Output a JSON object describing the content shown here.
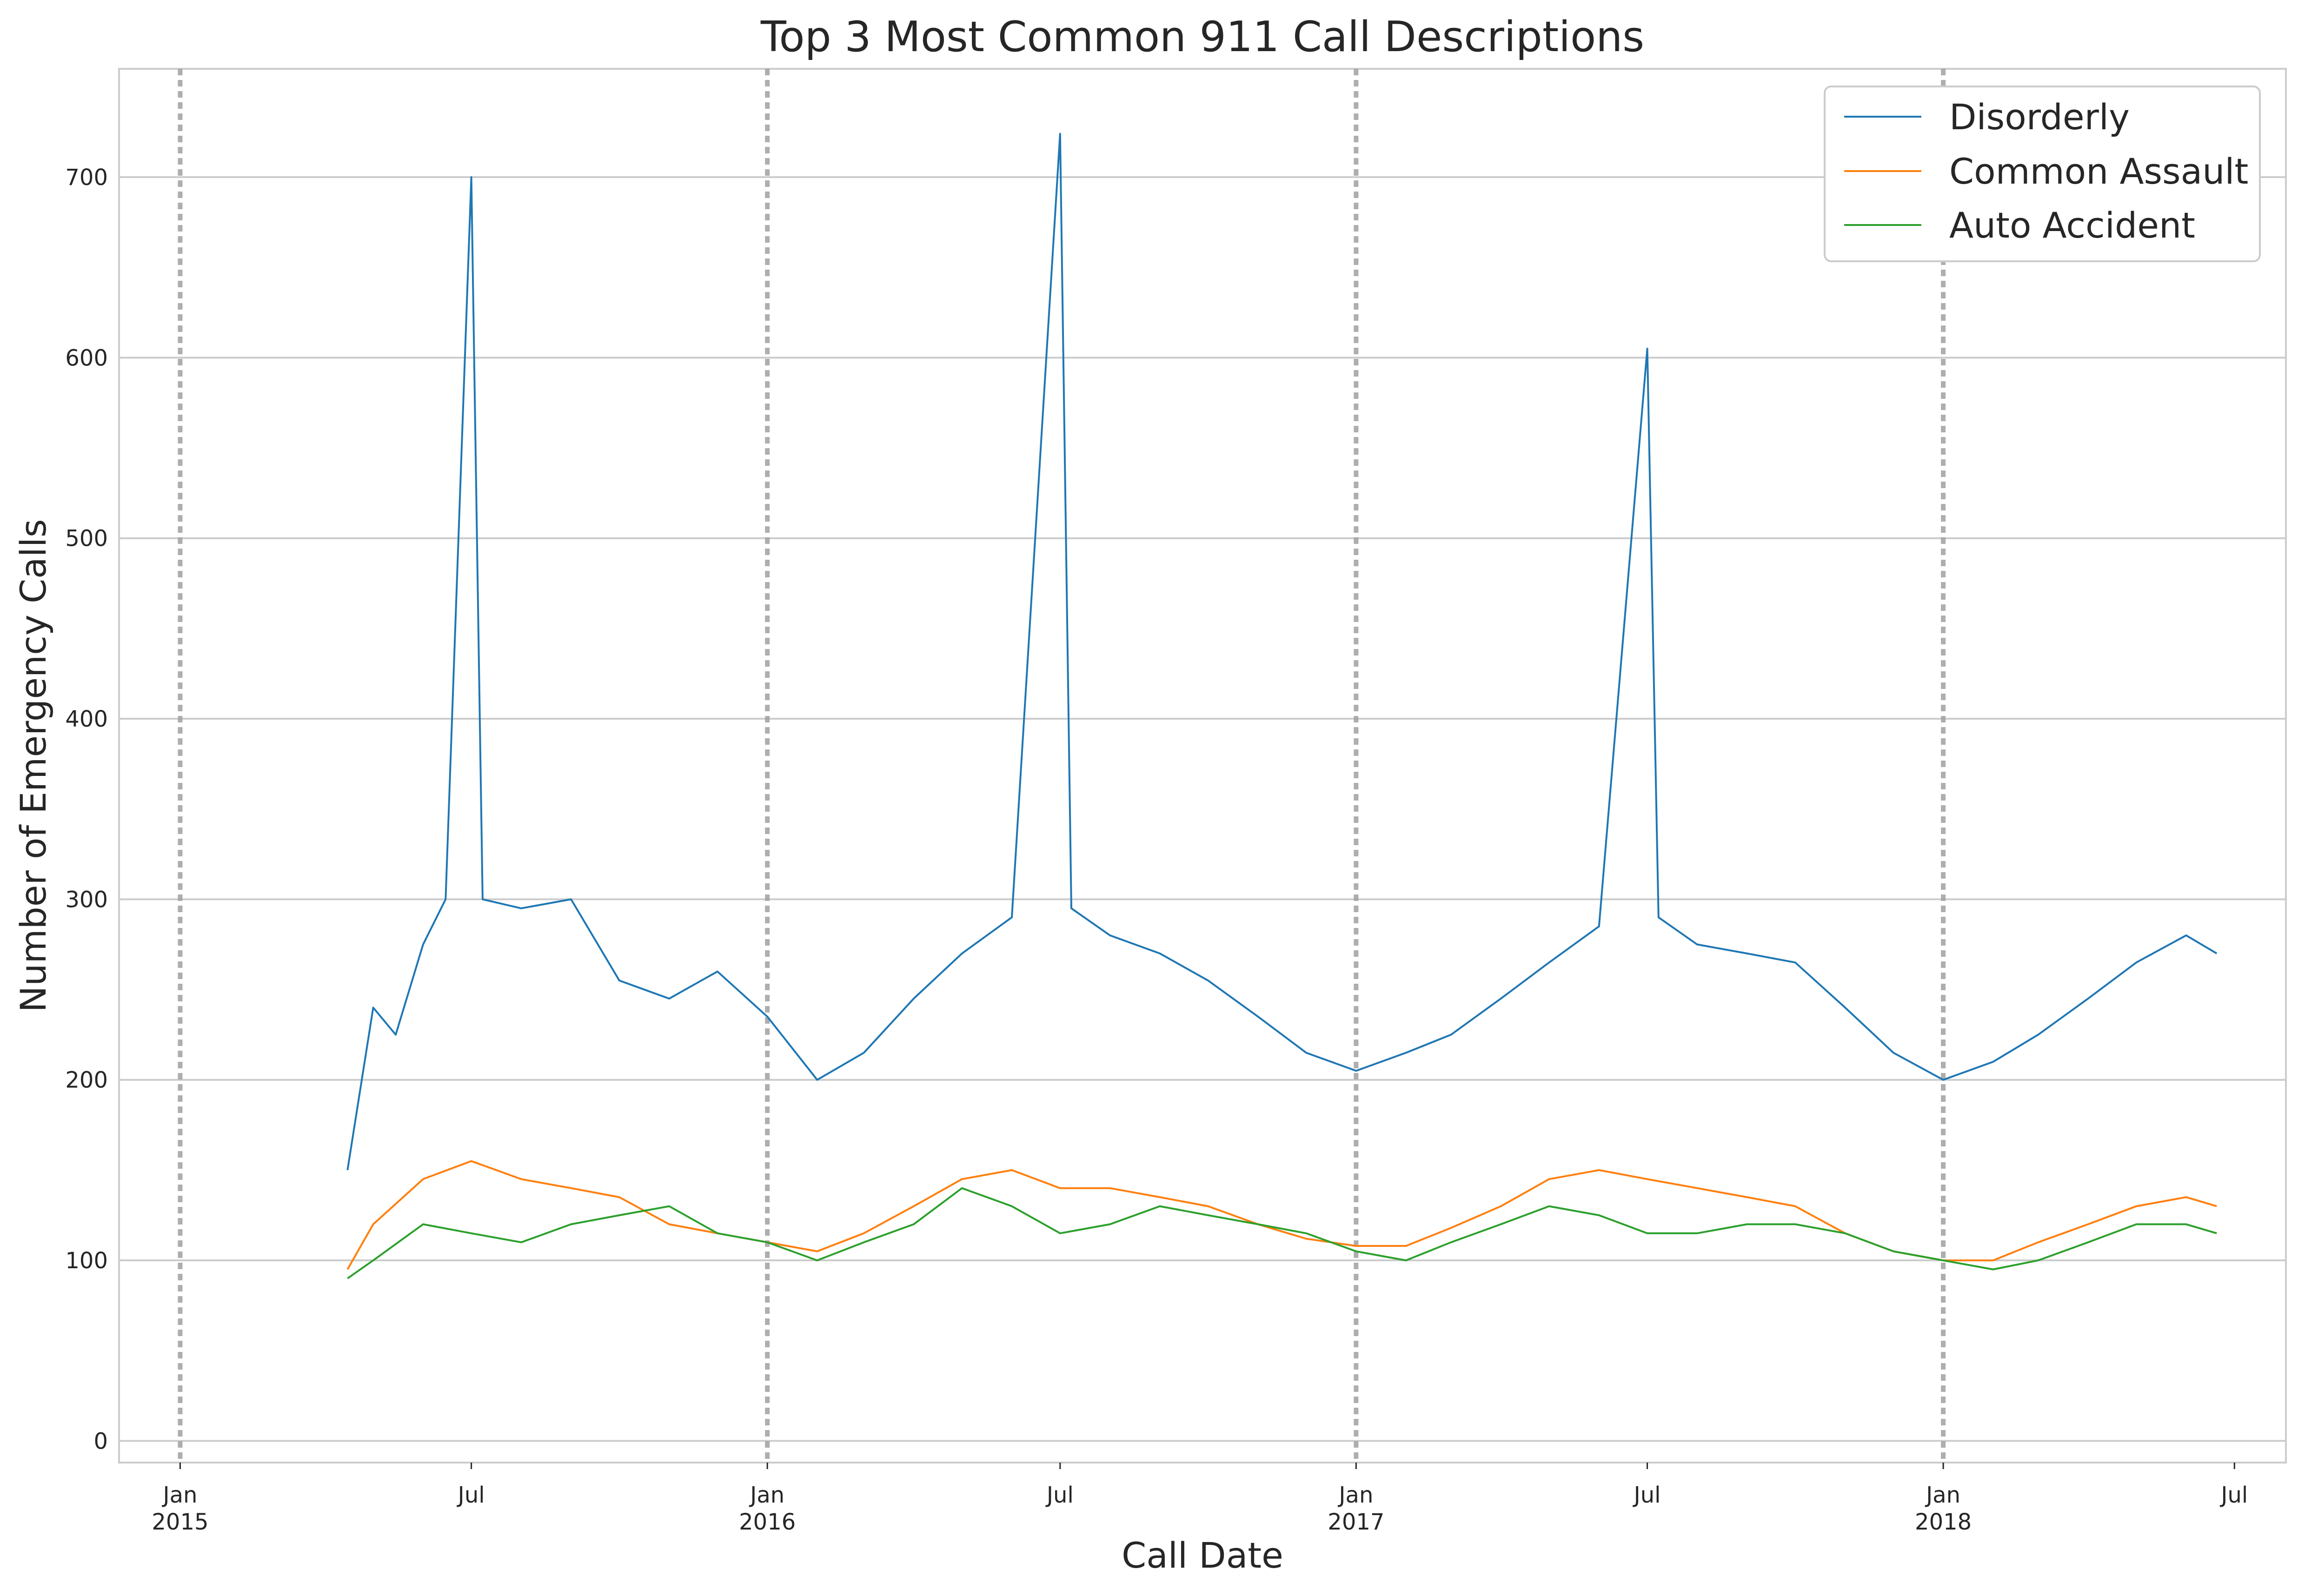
{
  "chart_data": {
    "type": "line",
    "title": "Top 3 Most Common 911 Call Descriptions",
    "xlabel": "Call Date",
    "ylabel": "Number of Emergency Calls",
    "x_range": [
      "2014-11-24",
      "2018-08-02"
    ],
    "ylim": [
      -12,
      760
    ],
    "y_ticks": [
      0,
      100,
      200,
      300,
      400,
      500,
      600,
      700
    ],
    "x_ticks": [
      {
        "date": "2015-01-01",
        "label": [
          "Jan",
          "2015"
        ]
      },
      {
        "date": "2015-07-01",
        "label": [
          "Jul",
          ""
        ]
      },
      {
        "date": "2016-01-01",
        "label": [
          "Jan",
          "2016"
        ]
      },
      {
        "date": "2016-07-01",
        "label": [
          "Jul",
          ""
        ]
      },
      {
        "date": "2017-01-01",
        "label": [
          "Jan",
          "2017"
        ]
      },
      {
        "date": "2017-07-01",
        "label": [
          "Jul",
          ""
        ]
      },
      {
        "date": "2018-01-01",
        "label": [
          "Jan",
          "2018"
        ]
      },
      {
        "date": "2018-07-01",
        "label": [
          "Jul",
          ""
        ]
      }
    ],
    "vlines": [
      "2015-01-01",
      "2016-01-01",
      "2017-01-01",
      "2018-01-01"
    ],
    "grid": "horizontal",
    "legend_position": "top-right",
    "series": [
      {
        "name": "Disorderly",
        "color": "#1f77b4",
        "points": [
          [
            "2015-04-15",
            150
          ],
          [
            "2015-05-01",
            240
          ],
          [
            "2015-05-15",
            225
          ],
          [
            "2015-06-01",
            275
          ],
          [
            "2015-06-15",
            300
          ],
          [
            "2015-07-01",
            700
          ],
          [
            "2015-07-08",
            300
          ],
          [
            "2015-08-01",
            295
          ],
          [
            "2015-09-01",
            300
          ],
          [
            "2015-10-01",
            255
          ],
          [
            "2015-11-01",
            245
          ],
          [
            "2015-12-01",
            260
          ],
          [
            "2016-01-01",
            235
          ],
          [
            "2016-02-01",
            200
          ],
          [
            "2016-03-01",
            215
          ],
          [
            "2016-04-01",
            245
          ],
          [
            "2016-05-01",
            270
          ],
          [
            "2016-06-01",
            290
          ],
          [
            "2016-07-01",
            724
          ],
          [
            "2016-07-08",
            295
          ],
          [
            "2016-08-01",
            280
          ],
          [
            "2016-09-01",
            270
          ],
          [
            "2016-10-01",
            255
          ],
          [
            "2016-11-01",
            235
          ],
          [
            "2016-12-01",
            215
          ],
          [
            "2017-01-01",
            205
          ],
          [
            "2017-02-01",
            215
          ],
          [
            "2017-03-01",
            225
          ],
          [
            "2017-04-01",
            245
          ],
          [
            "2017-05-01",
            265
          ],
          [
            "2017-06-01",
            285
          ],
          [
            "2017-07-01",
            605
          ],
          [
            "2017-07-08",
            290
          ],
          [
            "2017-08-01",
            275
          ],
          [
            "2017-09-01",
            270
          ],
          [
            "2017-10-01",
            265
          ],
          [
            "2017-11-01",
            240
          ],
          [
            "2017-12-01",
            215
          ],
          [
            "2018-01-01",
            200
          ],
          [
            "2018-02-01",
            210
          ],
          [
            "2018-03-01",
            225
          ],
          [
            "2018-04-01",
            245
          ],
          [
            "2018-05-01",
            265
          ],
          [
            "2018-06-01",
            280
          ],
          [
            "2018-06-20",
            270
          ]
        ]
      },
      {
        "name": "Common Assault",
        "color": "#ff7f0e",
        "points": [
          [
            "2015-04-15",
            95
          ],
          [
            "2015-05-01",
            120
          ],
          [
            "2015-06-01",
            145
          ],
          [
            "2015-07-01",
            155
          ],
          [
            "2015-08-01",
            145
          ],
          [
            "2015-09-01",
            140
          ],
          [
            "2015-10-01",
            135
          ],
          [
            "2015-11-01",
            120
          ],
          [
            "2015-12-01",
            115
          ],
          [
            "2016-01-01",
            110
          ],
          [
            "2016-02-01",
            105
          ],
          [
            "2016-03-01",
            115
          ],
          [
            "2016-04-01",
            130
          ],
          [
            "2016-05-01",
            145
          ],
          [
            "2016-06-01",
            150
          ],
          [
            "2016-07-01",
            140
          ],
          [
            "2016-08-01",
            140
          ],
          [
            "2016-09-01",
            135
          ],
          [
            "2016-10-01",
            130
          ],
          [
            "2016-11-01",
            120
          ],
          [
            "2016-12-01",
            112
          ],
          [
            "2017-01-01",
            108
          ],
          [
            "2017-02-01",
            108
          ],
          [
            "2017-03-01",
            118
          ],
          [
            "2017-04-01",
            130
          ],
          [
            "2017-05-01",
            145
          ],
          [
            "2017-06-01",
            150
          ],
          [
            "2017-07-01",
            145
          ],
          [
            "2017-08-01",
            140
          ],
          [
            "2017-09-01",
            135
          ],
          [
            "2017-10-01",
            130
          ],
          [
            "2017-11-01",
            115
          ],
          [
            "2017-12-01",
            105
          ],
          [
            "2018-01-01",
            100
          ],
          [
            "2018-02-01",
            100
          ],
          [
            "2018-03-01",
            110
          ],
          [
            "2018-04-01",
            120
          ],
          [
            "2018-05-01",
            130
          ],
          [
            "2018-06-01",
            135
          ],
          [
            "2018-06-20",
            130
          ]
        ]
      },
      {
        "name": "Auto Accident",
        "color": "#2ca02c",
        "points": [
          [
            "2015-04-15",
            90
          ],
          [
            "2015-05-01",
            100
          ],
          [
            "2015-06-01",
            120
          ],
          [
            "2015-07-01",
            115
          ],
          [
            "2015-08-01",
            110
          ],
          [
            "2015-09-01",
            120
          ],
          [
            "2015-10-01",
            125
          ],
          [
            "2015-11-01",
            130
          ],
          [
            "2015-12-01",
            115
          ],
          [
            "2016-01-01",
            110
          ],
          [
            "2016-02-01",
            100
          ],
          [
            "2016-03-01",
            110
          ],
          [
            "2016-04-01",
            120
          ],
          [
            "2016-05-01",
            140
          ],
          [
            "2016-06-01",
            130
          ],
          [
            "2016-07-01",
            115
          ],
          [
            "2016-08-01",
            120
          ],
          [
            "2016-09-01",
            130
          ],
          [
            "2016-10-01",
            125
          ],
          [
            "2016-11-01",
            120
          ],
          [
            "2016-12-01",
            115
          ],
          [
            "2017-01-01",
            105
          ],
          [
            "2017-02-01",
            100
          ],
          [
            "2017-03-01",
            110
          ],
          [
            "2017-04-01",
            120
          ],
          [
            "2017-05-01",
            130
          ],
          [
            "2017-06-01",
            125
          ],
          [
            "2017-07-01",
            115
          ],
          [
            "2017-08-01",
            115
          ],
          [
            "2017-09-01",
            120
          ],
          [
            "2017-10-01",
            120
          ],
          [
            "2017-11-01",
            115
          ],
          [
            "2017-12-01",
            105
          ],
          [
            "2018-01-01",
            100
          ],
          [
            "2018-02-01",
            95
          ],
          [
            "2018-03-01",
            100
          ],
          [
            "2018-04-01",
            110
          ],
          [
            "2018-05-01",
            120
          ],
          [
            "2018-06-01",
            120
          ],
          [
            "2018-06-20",
            115
          ]
        ]
      }
    ]
  }
}
